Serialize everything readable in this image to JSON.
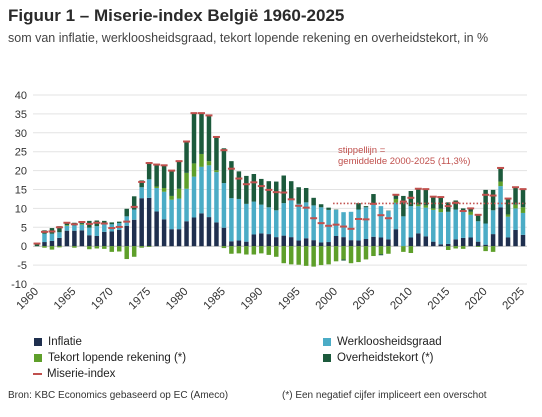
{
  "title": "Figuur 1 – Miserie-index België 1960-2025",
  "subtitle": "som van inflatie, werkloosheidsgraad, tekort lopende rekening en overheidstekort, in %",
  "source": "Bron: KBC Economics gebaseerd op EC (Ameco)",
  "note": "(*) Een negatief cijfer impliceert een overschot",
  "colors": {
    "inflatie": "#1f2f4e",
    "werkloosheidsgraad": "#4bacc6",
    "tekort_lopende_rekening": "#5e9f2a",
    "overheidstekort": "#1c5a3c",
    "miserie_index": "#c0504d",
    "average": "#c0504d"
  },
  "chart_data": {
    "type": "bar",
    "stacked": true,
    "x": [
      1960,
      1961,
      1962,
      1963,
      1964,
      1965,
      1966,
      1967,
      1968,
      1969,
      1970,
      1971,
      1972,
      1973,
      1974,
      1975,
      1976,
      1977,
      1978,
      1979,
      1980,
      1981,
      1982,
      1983,
      1984,
      1985,
      1986,
      1987,
      1988,
      1989,
      1990,
      1991,
      1992,
      1993,
      1994,
      1995,
      1996,
      1997,
      1998,
      1999,
      2000,
      2001,
      2002,
      2003,
      2004,
      2005,
      2006,
      2007,
      2008,
      2009,
      2010,
      2011,
      2012,
      2013,
      2014,
      2015,
      2016,
      2017,
      2018,
      2019,
      2020,
      2021,
      2022,
      2023,
      2024,
      2025
    ],
    "xticks": [
      1960,
      1965,
      1970,
      1975,
      1980,
      1985,
      1990,
      1995,
      2000,
      2005,
      2010,
      2015,
      2020,
      2025
    ],
    "ylim": [
      -10,
      40
    ],
    "yticks": [
      -10,
      -5,
      0,
      5,
      10,
      15,
      20,
      25,
      30,
      35,
      40
    ],
    "series": [
      {
        "name": "Inflatie",
        "key": "inflatie",
        "values": [
          0,
          1.1,
          1.4,
          2.2,
          4.1,
          4.1,
          4.2,
          2.9,
          2.7,
          3.8,
          3.9,
          4.3,
          5.4,
          7.0,
          12.7,
          12.8,
          9.2,
          7.1,
          4.5,
          4.5,
          6.6,
          7.6,
          8.7,
          7.7,
          6.3,
          4.9,
          1.3,
          1.5,
          1.2,
          3.1,
          3.4,
          3.2,
          2.4,
          2.8,
          2.4,
          1.5,
          2.1,
          1.6,
          1.0,
          1.1,
          2.7,
          2.4,
          1.6,
          1.5,
          1.9,
          2.5,
          2.3,
          1.8,
          4.5,
          0.0,
          2.3,
          3.4,
          2.6,
          1.2,
          0.5,
          0.6,
          1.8,
          2.2,
          2.3,
          1.2,
          0.4,
          3.2,
          10.3,
          2.3,
          4.3,
          3.0
        ]
      },
      {
        "name": "Werkloosheidsgraad",
        "key": "werkloosheidsgraad",
        "values": [
          0,
          2.2,
          1.9,
          1.5,
          1.3,
          1.4,
          1.5,
          2.0,
          2.6,
          2.2,
          1.9,
          1.8,
          2.5,
          2.7,
          2.9,
          4.9,
          6.2,
          7.3,
          7.8,
          8.1,
          8.6,
          10.8,
          12.3,
          13.7,
          13.3,
          11.8,
          11.4,
          11.0,
          10.0,
          8.7,
          7.6,
          7.1,
          7.1,
          8.6,
          9.8,
          9.7,
          9.5,
          9.2,
          9.3,
          8.5,
          6.9,
          6.6,
          7.5,
          8.2,
          8.4,
          8.5,
          8.3,
          7.5,
          7.0,
          7.9,
          8.3,
          7.2,
          7.6,
          8.4,
          8.5,
          8.5,
          7.9,
          7.1,
          6.0,
          5.4,
          5.6,
          6.3,
          5.6,
          5.5,
          5.7,
          5.8
        ]
      },
      {
        "name": "Tekort lopende rekening (*)",
        "key": "tekort_lopende_rekening",
        "values": [
          0,
          -0.4,
          -0.9,
          -0.3,
          0.2,
          -0.4,
          0.2,
          -0.8,
          -0.6,
          -0.7,
          -1.5,
          -1.4,
          -3.4,
          -2.8,
          -0.4,
          -0.2,
          0.4,
          1.0,
          1.0,
          2.6,
          4.2,
          3.5,
          3.4,
          1.1,
          0.5,
          -0.5,
          -2.0,
          -1.9,
          -2.2,
          -2.2,
          -1.9,
          -2.3,
          -2.8,
          -4.5,
          -4.8,
          -4.9,
          -5.2,
          -5.4,
          -5.0,
          -4.8,
          -4.0,
          -3.5,
          -4.5,
          -4.2,
          -3.5,
          -2.6,
          -2.1,
          -2.0,
          1.0,
          -1.5,
          -1.8,
          0.4,
          0.6,
          0.4,
          0.9,
          -1.0,
          -0.6,
          -0.7,
          0.8,
          -0.2,
          -1.3,
          -1.5,
          1.2,
          0.6,
          1.0,
          1.5
        ]
      },
      {
        "name": "Overheidstekort (*)",
        "key": "overheidstekort",
        "values": [
          0.7,
          0.9,
          1.5,
          1.6,
          0.6,
          0.7,
          0.5,
          1.8,
          1.5,
          0.7,
          0.5,
          0.4,
          2.0,
          3.5,
          1.8,
          4.5,
          5.8,
          6.0,
          6.7,
          7.3,
          8.3,
          13.3,
          10.8,
          12.1,
          8.8,
          9.2,
          9.8,
          7.3,
          7.4,
          7.3,
          6.8,
          6.9,
          7.6,
          7.3,
          5.0,
          4.4,
          3.8,
          2.0,
          0.8,
          0.6,
          0.1,
          -0.3,
          0.0,
          1.7,
          0.3,
          2.8,
          -0.3,
          0.1,
          1.1,
          5.4,
          4.0,
          4.2,
          4.3,
          3.1,
          3.1,
          2.5,
          2.4,
          0.7,
          0.9,
          1.9,
          8.9,
          5.4,
          3.6,
          4.2,
          4.6,
          4.8
        ]
      },
      {
        "name": "Miserie-index",
        "key": "miserie_index",
        "type": "line",
        "values": [
          0.7,
          3.8,
          3.9,
          5.0,
          6.2,
          5.8,
          6.4,
          5.9,
          6.2,
          6.0,
          4.8,
          5.1,
          6.5,
          10.4,
          17.0,
          22.0,
          21.6,
          21.4,
          20.0,
          22.5,
          27.7,
          35.2,
          35.2,
          34.6,
          28.9,
          25.4,
          20.5,
          17.9,
          16.4,
          16.9,
          15.9,
          14.9,
          14.3,
          14.2,
          12.4,
          10.7,
          10.2,
          7.4,
          6.1,
          5.4,
          5.7,
          5.2,
          4.6,
          7.2,
          7.1,
          11.2,
          8.2,
          7.4,
          13.6,
          11.8,
          12.8,
          15.2,
          15.1,
          13.1,
          13.0,
          10.6,
          11.5,
          9.3,
          10.0,
          8.3,
          13.6,
          13.4,
          20.7,
          12.6,
          15.6,
          15.1
        ]
      }
    ],
    "average": {
      "label": "stippellijn =\ngemiddelde 2000-2025 (11,3%)",
      "value": 11.3,
      "from": 2000,
      "to": 2025
    }
  },
  "legend": [
    {
      "label": "Inflatie",
      "key": "inflatie"
    },
    {
      "label": "Werkloosheidsgraad",
      "key": "werkloosheidsgraad"
    },
    {
      "label": "Tekort lopende rekening (*)",
      "key": "tekort_lopende_rekening"
    },
    {
      "label": "Overheidstekort (*)",
      "key": "overheidstekort"
    },
    {
      "label": "Miserie-index",
      "key": "miserie_index"
    }
  ]
}
